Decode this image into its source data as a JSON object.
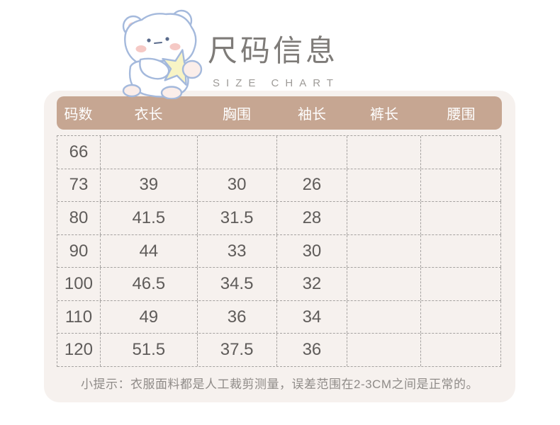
{
  "header": {
    "title": "尺码信息",
    "subtitle": "SIZE CHART",
    "mascot": "teddy-bear-holding-star-icon"
  },
  "table": {
    "headers": [
      "码数",
      "衣长",
      "胸围",
      "袖长",
      "裤长",
      "腰围"
    ],
    "rows": [
      [
        "66",
        "",
        "",
        "",
        "",
        ""
      ],
      [
        "73",
        "39",
        "30",
        "26",
        "",
        ""
      ],
      [
        "80",
        "41.5",
        "31.5",
        "28",
        "",
        ""
      ],
      [
        "90",
        "44",
        "33",
        "30",
        "",
        ""
      ],
      [
        "100",
        "46.5",
        "34.5",
        "32",
        "",
        ""
      ],
      [
        "110",
        "49",
        "36",
        "34",
        "",
        ""
      ],
      [
        "120",
        "51.5",
        "37.5",
        "36",
        "",
        ""
      ]
    ]
  },
  "footer": {
    "note": "小提示：衣服面料都是人工裁剪测量，误差范围在2-3CM之间是正常的。"
  },
  "chart_data": {
    "type": "table",
    "title": "尺码信息 (SIZE CHART)",
    "columns": [
      "码数",
      "衣长",
      "胸围",
      "袖长",
      "裤长",
      "腰围"
    ],
    "rows": [
      {
        "码数": "66",
        "衣长": null,
        "胸围": null,
        "袖长": null,
        "裤长": null,
        "腰围": null
      },
      {
        "码数": "73",
        "衣长": 39,
        "胸围": 30,
        "袖长": 26,
        "裤长": null,
        "腰围": null
      },
      {
        "码数": "80",
        "衣长": 41.5,
        "胸围": 31.5,
        "袖长": 28,
        "裤长": null,
        "腰围": null
      },
      {
        "码数": "90",
        "衣长": 44,
        "胸围": 33,
        "袖长": 30,
        "裤长": null,
        "腰围": null
      },
      {
        "码数": "100",
        "衣长": 46.5,
        "胸围": 34.5,
        "袖长": 32,
        "裤长": null,
        "腰围": null
      },
      {
        "码数": "110",
        "衣长": 49,
        "胸围": 36,
        "袖长": 34,
        "裤长": null,
        "腰围": null
      },
      {
        "码数": "120",
        "衣长": 51.5,
        "胸围": 37.5,
        "袖长": 36,
        "裤长": null,
        "腰围": null
      }
    ],
    "note": "小提示：衣服面料都是人工裁剪测量，误差范围在2-3CM之间是正常的。"
  },
  "colors": {
    "band": "#c6a692",
    "card_bg": "#f6f1ee",
    "cell_text": "#5f5c5a",
    "dash": "#a5a2a0",
    "title": "#7e7b78",
    "subtitle": "#9e9b98",
    "note": "#8f8b88",
    "bear_outline": "#a4b9dc",
    "bear_blush": "#f3bcb6",
    "bear_star": "#f8f4c5",
    "bear_pad": "#fbeeea"
  }
}
